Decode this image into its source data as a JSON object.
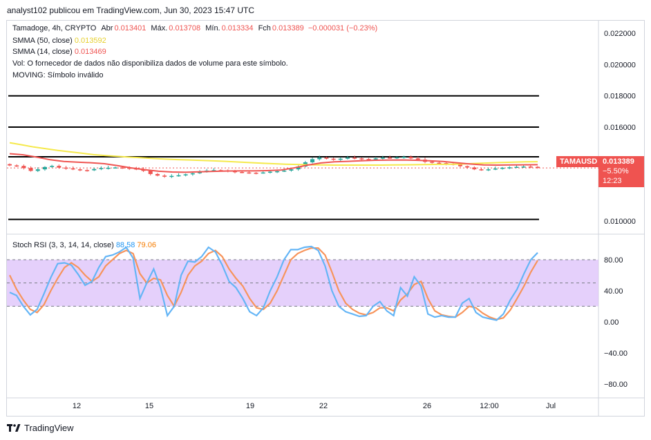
{
  "caption": "analyst102 publicou em TradingView.com, Jun 30, 2023 15:47 UTC",
  "footer": {
    "brand": "TradingView",
    "logo_icon": "tradingview-logo-icon"
  },
  "legend": {
    "symbol": "Tamadoge, 4h, CRYPTO",
    "open_label": "Abr",
    "open": "0.013401",
    "high_label": "Máx.",
    "high": "0.013708",
    "low_label": "Mín.",
    "low": "0.013334",
    "close_label": "Fch",
    "close": "0.013389",
    "change": "−0.000031 (−0.23%)",
    "sma50_label": "SMMA (50, close)",
    "sma50_value": "0.013592",
    "sma14_label": "SMMA (14, close)",
    "sma14_value": "0.013469",
    "vol_text": "Vol: O fornecedor de dados não disponibiliza dados de volume para este símbolo.",
    "moving_text": "MOVING: Símbolo inválido",
    "rsi_label": "Stoch RSI (3, 3, 14, 14, close)",
    "rsi_k": "88.58",
    "rsi_d": "79.06"
  },
  "price_tag": {
    "symbol": "TAMAUSD",
    "price": "0.013389",
    "change_pct": "−5.50%",
    "countdown": "12:23"
  },
  "colors": {
    "up": "#26a69a",
    "down": "#ef5350",
    "sma50": "#f5e94a",
    "sma14": "#ef5350",
    "rsi_k": "#64b5f6",
    "rsi_d": "#f7945b",
    "rsi_band": "#e1c8fa"
  },
  "chart_data": [
    {
      "type": "candlestick",
      "x_ticks": [
        "12",
        "15",
        "19",
        "22",
        "26",
        "12:00",
        "Jul"
      ],
      "y_ticks": [
        "0.022000",
        "0.020000",
        "0.018000",
        "0.016000",
        "0.014000",
        "0.010000"
      ],
      "ylim": [
        0.0092,
        0.0228
      ],
      "horizontal_levels": [
        0.018,
        0.016,
        0.0141,
        0.0101
      ],
      "close_series": [
        0.01355,
        0.01352,
        0.01338,
        0.0132,
        0.0133,
        0.01345,
        0.01352,
        0.01341,
        0.01336,
        0.0133,
        0.01325,
        0.01324,
        0.01332,
        0.01338,
        0.0134,
        0.01342,
        0.0134,
        0.01335,
        0.0133,
        0.0132,
        0.013,
        0.0129,
        0.01283,
        0.01288,
        0.01292,
        0.01298,
        0.01305,
        0.01316,
        0.01322,
        0.01325,
        0.01323,
        0.01318,
        0.01313,
        0.0131,
        0.01308,
        0.01307,
        0.0131,
        0.01315,
        0.01318,
        0.01322,
        0.0133,
        0.01348,
        0.01375,
        0.01395,
        0.01405,
        0.01398,
        0.01392,
        0.01398,
        0.01405,
        0.014,
        0.01396,
        0.01393,
        0.014,
        0.01405,
        0.01403,
        0.01407,
        0.0141,
        0.014,
        0.01392,
        0.01378,
        0.01372,
        0.0137,
        0.01365,
        0.0136,
        0.0135,
        0.01342,
        0.0133,
        0.01328,
        0.0133,
        0.01335,
        0.0134,
        0.01343,
        0.01346,
        0.01348,
        0.01346,
        0.01339
      ],
      "sma50_series": [
        0.015,
        0.01487,
        0.01473,
        0.01462,
        0.01451,
        0.01442,
        0.01433,
        0.01424,
        0.01418,
        0.01413,
        0.01408,
        0.01404,
        0.01399,
        0.01395,
        0.01392,
        0.0139,
        0.01387,
        0.01384,
        0.01381,
        0.01377,
        0.01373,
        0.01369,
        0.01366,
        0.01363,
        0.01361,
        0.01359,
        0.01358,
        0.01357,
        0.01357,
        0.01357,
        0.01357,
        0.01357,
        0.01358,
        0.01359,
        0.0136,
        0.01361,
        0.01362,
        0.01363,
        0.01365,
        0.01368,
        0.01371,
        0.01374,
        0.01376,
        0.01378,
        0.01379
      ],
      "sma14_series": [
        0.0143,
        0.01423,
        0.01408,
        0.01391,
        0.0138,
        0.01376,
        0.01372,
        0.01366,
        0.01353,
        0.01339,
        0.01327,
        0.01318,
        0.01313,
        0.01311,
        0.01314,
        0.01317,
        0.01319,
        0.0132,
        0.0132,
        0.01322,
        0.01325,
        0.01339,
        0.01357,
        0.01371,
        0.01378,
        0.01381,
        0.01385,
        0.01388,
        0.01389,
        0.0139,
        0.01388,
        0.01385,
        0.0138,
        0.01372,
        0.01364,
        0.01358,
        0.01357,
        0.01358,
        0.01359,
        0.0136
      ]
    },
    {
      "type": "line",
      "name": "Stoch RSI (3, 3, 14, 14, close)",
      "y_ticks": [
        "80.00",
        "40.00",
        "0.00",
        "−40.00",
        "−80.00"
      ],
      "ylim": [
        -98,
        112
      ],
      "band": [
        20,
        80
      ],
      "k": [
        38,
        34,
        20,
        9,
        16,
        36,
        57,
        75,
        76,
        73,
        61,
        47,
        52,
        70,
        84,
        86,
        90,
        96,
        82,
        30,
        50,
        68,
        44,
        8,
        20,
        60,
        78,
        77,
        84,
        96,
        90,
        73,
        52,
        44,
        30,
        13,
        8,
        18,
        40,
        58,
        80,
        93,
        93,
        96,
        97,
        92,
        72,
        40,
        20,
        13,
        10,
        7,
        8,
        20,
        26,
        14,
        8,
        44,
        33,
        58,
        46,
        10,
        6,
        8,
        6,
        6,
        24,
        30,
        12,
        6,
        4,
        2,
        10,
        28,
        42,
        62,
        80,
        89
      ],
      "d": [
        60,
        42,
        28,
        16,
        12,
        22,
        40,
        56,
        70,
        76,
        70,
        60,
        52,
        58,
        72,
        80,
        88,
        92,
        88,
        62,
        50,
        56,
        54,
        34,
        20,
        38,
        60,
        72,
        78,
        88,
        92,
        84,
        68,
        56,
        46,
        30,
        18,
        16,
        24,
        40,
        60,
        80,
        88,
        92,
        95,
        95,
        86,
        64,
        40,
        24,
        16,
        11,
        9,
        12,
        18,
        18,
        14,
        28,
        36,
        48,
        52,
        30,
        14,
        9,
        7,
        6,
        12,
        20,
        18,
        11,
        6,
        3,
        5,
        15,
        30,
        46,
        64,
        79
      ]
    }
  ]
}
